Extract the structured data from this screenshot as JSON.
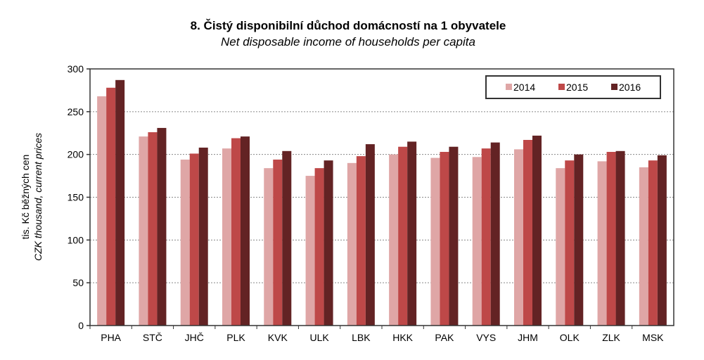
{
  "chart_data": {
    "type": "bar",
    "title": "8. Čistý disponibilní důchod domácností na 1 obyvatele",
    "subtitle": "Net disposable income of households per capita",
    "ylabel": "tis. Kč běžných cen",
    "ylabel_en": "CZK thousand, current prices",
    "xlabel": "",
    "ylim": [
      0,
      300
    ],
    "yticks": [
      0,
      50,
      100,
      150,
      200,
      250,
      300
    ],
    "grid": true,
    "legend_position": "top-right",
    "categories": [
      "PHA",
      "STČ",
      "JHČ",
      "PLK",
      "KVK",
      "ULK",
      "LBK",
      "HKK",
      "PAK",
      "VYS",
      "JHM",
      "OLK",
      "ZLK",
      "MSK"
    ],
    "series": [
      {
        "name": "2014",
        "color": "#dfa6a6",
        "values": [
          268,
          221,
          194,
          207,
          184,
          175,
          190,
          200,
          196,
          197,
          206,
          184,
          192,
          185
        ]
      },
      {
        "name": "2015",
        "color": "#be4848",
        "values": [
          278,
          226,
          201,
          219,
          194,
          184,
          198,
          209,
          203,
          207,
          217,
          193,
          203,
          193
        ]
      },
      {
        "name": "2016",
        "color": "#632324",
        "values": [
          287,
          231,
          208,
          221,
          204,
          193,
          212,
          215,
          209,
          214,
          222,
          200,
          204,
          199
        ]
      }
    ]
  }
}
